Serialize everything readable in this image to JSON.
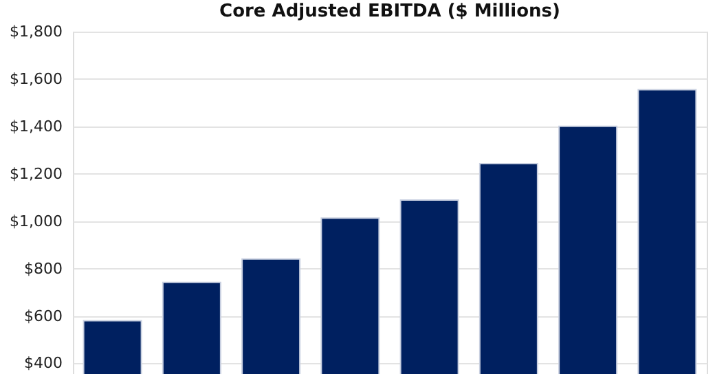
{
  "chart_data": {
    "type": "bar",
    "title": "Core Adjusted EBITDA ($ Millions)",
    "categories": [
      null,
      null,
      null,
      null,
      null,
      null,
      null,
      null
    ],
    "values": [
      580,
      742,
      840,
      1013,
      1089,
      1243,
      1400,
      1555
    ],
    "color": "#002060",
    "ylim": [
      355,
      1800
    ],
    "yticks": [
      {
        "value": 400,
        "label": "$400"
      },
      {
        "value": 600,
        "label": "$600"
      },
      {
        "value": 800,
        "label": "$800"
      },
      {
        "value": 1000,
        "label": "$1,000"
      },
      {
        "value": 1200,
        "label": "$1,200"
      },
      {
        "value": 1400,
        "label": "$1,400"
      },
      {
        "value": 1600,
        "label": "$1,600"
      },
      {
        "value": 1800,
        "label": "$1,800"
      }
    ],
    "grid": "y",
    "tick_labels": "y"
  }
}
